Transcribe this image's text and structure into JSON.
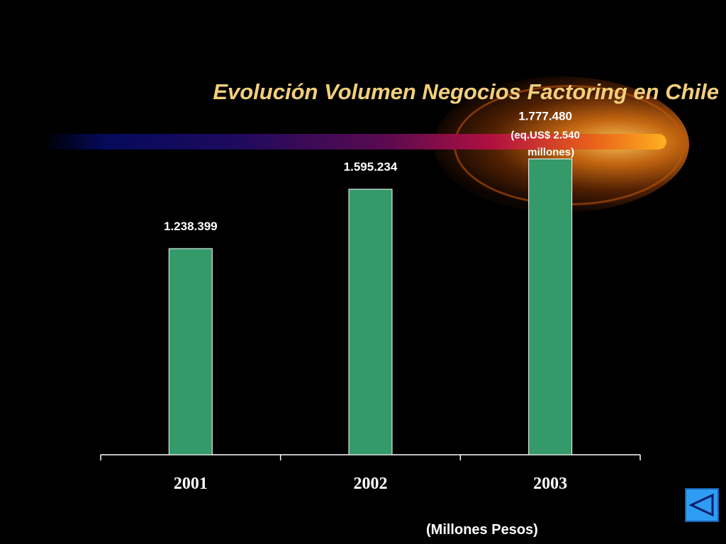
{
  "chart_data": {
    "type": "bar",
    "title": "Evolución Volumen Negocios Factoring en Chile",
    "categories": [
      "2001",
      "2002",
      "2003"
    ],
    "values": [
      1238399,
      1595234,
      1777480
    ],
    "data_labels": [
      "1.238.399",
      "1.595.234",
      "1.777.480"
    ],
    "annotation": {
      "line1": "(eq.US$ 2.540",
      "line2": "millones)"
    },
    "ylim": [
      0,
      2000000
    ],
    "grid": false,
    "bar_color": "#359a6a",
    "units_note": "(Millones Pesos)"
  },
  "colors": {
    "background": "#000000",
    "title": "#f2cf7a",
    "label": "#ffffff",
    "axis": "#ffffff"
  },
  "nav": {
    "back_icon": "triangle-left-icon"
  }
}
